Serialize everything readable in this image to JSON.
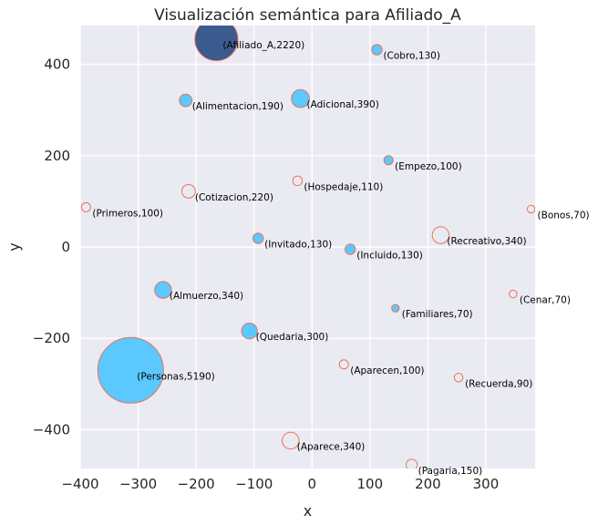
{
  "chart_data": {
    "type": "scatter",
    "title": "Visualización semántica para Afiliado_A",
    "xlabel": "x",
    "ylabel": "y",
    "xlim": [
      -400,
      385
    ],
    "ylim": [
      -485,
      485
    ],
    "xticks": [
      -400,
      -300,
      -200,
      -100,
      0,
      100,
      200,
      300
    ],
    "yticks": [
      -400,
      -200,
      0,
      200,
      400
    ],
    "xtick_labels": [
      "−400",
      "−300",
      "−200",
      "−100",
      "0",
      "100",
      "200",
      "300"
    ],
    "ytick_labels": [
      "−400",
      "−200",
      "0",
      "200",
      "400"
    ],
    "grid": true,
    "colors": {
      "background": "#EAEAF2",
      "grid": "#FFFFFF",
      "main_fill": "#3B5A8F",
      "filled": "#5BC8FF",
      "outline": "#E8735A"
    },
    "points": [
      {
        "label": "(Afiliado_A,2220)",
        "x": -165,
        "y": 455,
        "size": 2220,
        "style": "main"
      },
      {
        "label": "(Cobro,130)",
        "x": 112,
        "y": 432,
        "size": 130,
        "style": "filled"
      },
      {
        "label": "(Alimentacion,190)",
        "x": -218,
        "y": 321,
        "size": 190,
        "style": "filled"
      },
      {
        "label": "(Adicional,390)",
        "x": -20,
        "y": 325,
        "size": 390,
        "style": "filled"
      },
      {
        "label": "(Empezo,100)",
        "x": 132,
        "y": 190,
        "size": 100,
        "style": "filled"
      },
      {
        "label": "(Hospedaje,110)",
        "x": -25,
        "y": 145,
        "size": 110,
        "style": "outline"
      },
      {
        "label": "(Cotizacion,220)",
        "x": -213,
        "y": 122,
        "size": 220,
        "style": "outline"
      },
      {
        "label": "(Primeros,100)",
        "x": -390,
        "y": 87,
        "size": 100,
        "style": "outline"
      },
      {
        "label": "(Bonos,70)",
        "x": 378,
        "y": 83,
        "size": 70,
        "style": "outline"
      },
      {
        "label": "(Invitado,130)",
        "x": -93,
        "y": 19,
        "size": 130,
        "style": "filled"
      },
      {
        "label": "(Recreativo,340)",
        "x": 222,
        "y": 26,
        "size": 340,
        "style": "outline"
      },
      {
        "label": "(Incluido,130)",
        "x": 66,
        "y": -5,
        "size": 130,
        "style": "filled"
      },
      {
        "label": "(Almuerzo,340)",
        "x": -257,
        "y": -94,
        "size": 340,
        "style": "filled"
      },
      {
        "label": "(Cenar,70)",
        "x": 347,
        "y": -103,
        "size": 70,
        "style": "outline"
      },
      {
        "label": "(Familiares,70)",
        "x": 144,
        "y": -134,
        "size": 70,
        "style": "filled"
      },
      {
        "label": "(Quedaria,300)",
        "x": -108,
        "y": -184,
        "size": 300,
        "style": "filled"
      },
      {
        "label": "(Personas,5190)",
        "x": -313,
        "y": -270,
        "size": 5190,
        "style": "filled"
      },
      {
        "label": "(Aparecen,100)",
        "x": 55,
        "y": -257,
        "size": 100,
        "style": "outline"
      },
      {
        "label": "(Recuerda,90)",
        "x": 253,
        "y": -286,
        "size": 90,
        "style": "outline"
      },
      {
        "label": "(Aparece,340)",
        "x": -37,
        "y": -424,
        "size": 340,
        "style": "outline"
      },
      {
        "label": "(Pagaria,150)",
        "x": 172,
        "y": -477,
        "size": 150,
        "style": "outline"
      }
    ]
  }
}
